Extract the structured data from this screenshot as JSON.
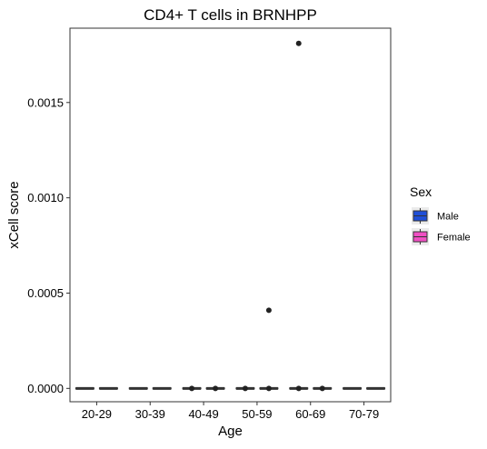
{
  "chart_data": {
    "type": "box",
    "title": "CD4+ T cells in BRNHPP",
    "xlabel": "Age",
    "ylabel": "xCell score",
    "categories": [
      "20-29",
      "30-39",
      "40-49",
      "50-59",
      "60-69",
      "70-79"
    ],
    "ylim": [
      -7e-05,
      0.00189
    ],
    "yticks": [
      0.0,
      0.0005,
      0.001,
      0.0015
    ],
    "ytick_labels": [
      "0.0000",
      "0.0005",
      "0.0010",
      "0.0015"
    ],
    "grid": false,
    "legend": {
      "title": "Sex",
      "placement": "right",
      "entries": [
        {
          "name": "Male",
          "color": "#1f4fd8"
        },
        {
          "name": "Female",
          "color": "#f04fc3"
        }
      ]
    },
    "series": [
      {
        "name": "Male",
        "color": "#1f4fd8",
        "boxes": [
          {
            "category": "20-29",
            "min": 0,
            "q1": 0,
            "median": 0,
            "q3": 0,
            "max": 0,
            "outliers": []
          },
          {
            "category": "30-39",
            "min": 0,
            "q1": 0,
            "median": 0,
            "q3": 0,
            "max": 0,
            "outliers": []
          },
          {
            "category": "40-49",
            "min": 0,
            "q1": 0,
            "median": 0,
            "q3": 0,
            "max": 0,
            "outliers": [
              0.0
            ]
          },
          {
            "category": "50-59",
            "min": 0,
            "q1": 0,
            "median": 0,
            "q3": 0,
            "max": 0,
            "outliers": [
              0.0
            ]
          },
          {
            "category": "60-69",
            "min": 0,
            "q1": 0,
            "median": 0,
            "q3": 0,
            "max": 0,
            "outliers": [
              0.0,
              0.00181
            ]
          },
          {
            "category": "70-79",
            "min": 0,
            "q1": 0,
            "median": 0,
            "q3": 0,
            "max": 0,
            "outliers": []
          }
        ]
      },
      {
        "name": "Female",
        "color": "#f04fc3",
        "boxes": [
          {
            "category": "20-29",
            "min": 0,
            "q1": 0,
            "median": 0,
            "q3": 0,
            "max": 0,
            "outliers": []
          },
          {
            "category": "30-39",
            "min": 0,
            "q1": 0,
            "median": 0,
            "q3": 0,
            "max": 0,
            "outliers": []
          },
          {
            "category": "40-49",
            "min": 0,
            "q1": 0,
            "median": 0,
            "q3": 0,
            "max": 0,
            "outliers": [
              0.0
            ]
          },
          {
            "category": "50-59",
            "min": 0,
            "q1": 0,
            "median": 0,
            "q3": 0,
            "max": 0,
            "outliers": [
              0.0,
              0.00041
            ]
          },
          {
            "category": "60-69",
            "min": 0,
            "q1": 0,
            "median": 0,
            "q3": 0,
            "max": 0,
            "outliers": [
              0.0
            ]
          },
          {
            "category": "70-79",
            "min": 0,
            "q1": 0,
            "median": 0,
            "q3": 0,
            "max": 0,
            "outliers": []
          }
        ]
      }
    ]
  }
}
